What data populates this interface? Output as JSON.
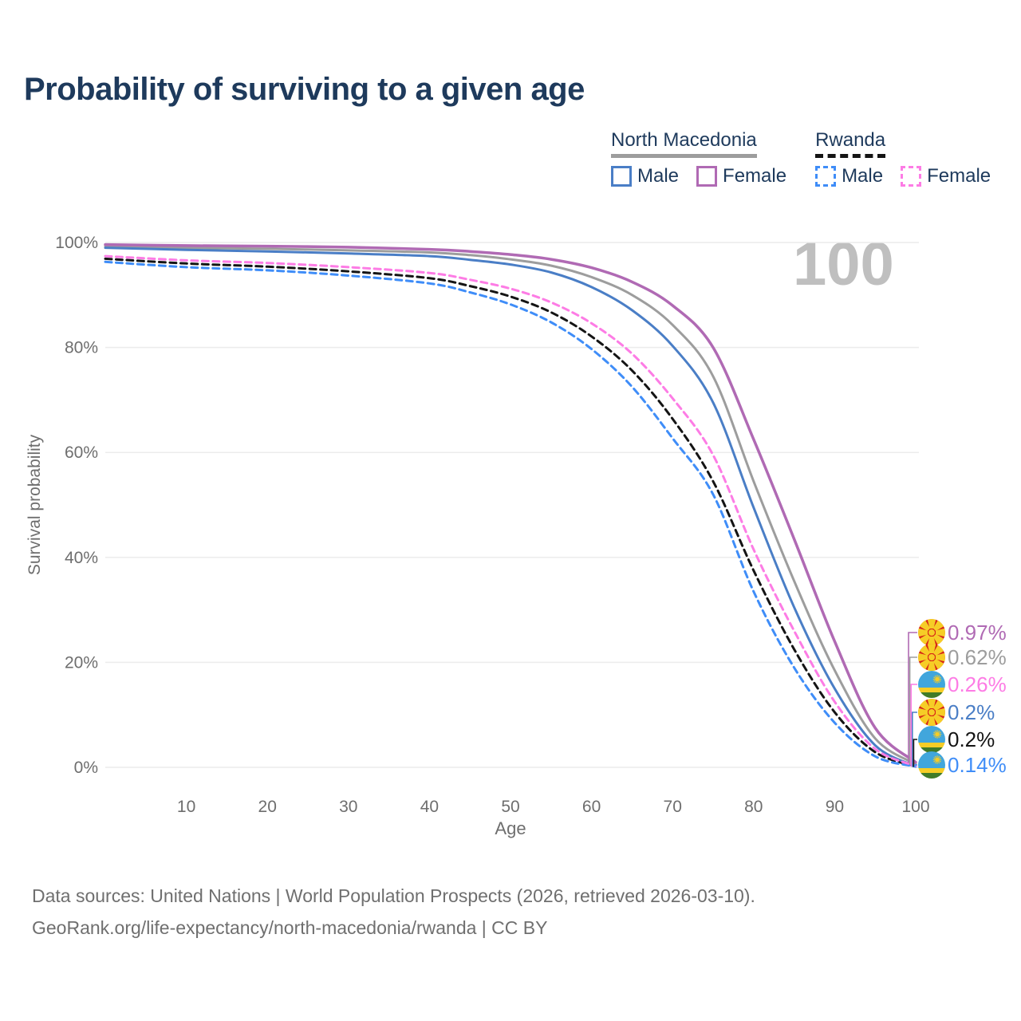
{
  "title": "Probability of surviving to a given age",
  "watermark": "100",
  "legend": {
    "groups": [
      {
        "country": "North Macedonia",
        "line_style": "solid",
        "underline_color": "#9d9d9d",
        "items": [
          {
            "label": "Male",
            "color": "#4a7ec6",
            "dashed": false
          },
          {
            "label": "Female",
            "color": "#b06ab4",
            "dashed": false
          }
        ]
      },
      {
        "country": "Rwanda",
        "line_style": "dashed",
        "underline_color": "#141414",
        "items": [
          {
            "label": "Male",
            "color": "#3f8df8",
            "dashed": true
          },
          {
            "label": "Female",
            "color": "#fd7ce5",
            "dashed": true
          }
        ]
      }
    ]
  },
  "chart_data": {
    "type": "line",
    "title": "Probability of surviving to a given age",
    "xlabel": "Age",
    "ylabel": "Survival probability",
    "xlim": [
      0,
      100
    ],
    "ylim": [
      0,
      100
    ],
    "grid": "horizontal",
    "legend_position": "top-right",
    "x_ticks": [
      10,
      20,
      30,
      40,
      50,
      60,
      70,
      80,
      90,
      100
    ],
    "y_ticks": [
      "0%",
      "20%",
      "40%",
      "60%",
      "80%",
      "100%"
    ],
    "x": [
      0,
      10,
      20,
      30,
      40,
      45,
      50,
      55,
      60,
      65,
      70,
      75,
      80,
      85,
      90,
      95,
      100
    ],
    "series": [
      {
        "name": "North Macedonia Female",
        "flag": "north-macedonia",
        "color": "#b06ab4",
        "dashed": false,
        "end_label": "0.97%",
        "values": [
          99.6,
          99.4,
          99.3,
          99.1,
          98.7,
          98.3,
          97.7,
          96.8,
          95.2,
          92.5,
          88.0,
          80.0,
          62.5,
          43.5,
          24.0,
          7.5,
          0.97
        ]
      },
      {
        "name": "North Macedonia",
        "flag": "north-macedonia",
        "color": "#9d9d9d",
        "dashed": false,
        "end_label": "0.62%",
        "values": [
          99.3,
          99.0,
          98.8,
          98.5,
          98.1,
          97.6,
          96.8,
          95.6,
          93.4,
          90.0,
          84.3,
          74.5,
          54.5,
          35.5,
          18.5,
          5.5,
          0.62
        ]
      },
      {
        "name": "Rwanda Female",
        "flag": "rwanda",
        "color": "#fd7ce5",
        "dashed": true,
        "end_label": "0.26%",
        "values": [
          97.4,
          96.6,
          96.1,
          95.3,
          94.2,
          92.9,
          91.2,
          88.6,
          84.6,
          78.8,
          70.3,
          59.5,
          41.5,
          26.0,
          12.5,
          3.5,
          0.26
        ]
      },
      {
        "name": "North Macedonia Male",
        "flag": "north-macedonia",
        "color": "#4a7ec6",
        "dashed": false,
        "end_label": "0.2%",
        "values": [
          99.0,
          98.6,
          98.3,
          97.9,
          97.4,
          96.7,
          95.8,
          94.3,
          91.5,
          87.1,
          80.3,
          69.5,
          49.5,
          30.5,
          15.0,
          4.2,
          0.2
        ]
      },
      {
        "name": "Rwanda",
        "flag": "rwanda",
        "color": "#141414",
        "dashed": true,
        "end_label": "0.2%",
        "values": [
          96.9,
          96.0,
          95.4,
          94.5,
          93.2,
          91.7,
          89.7,
          86.7,
          82.1,
          75.6,
          66.4,
          54.5,
          37.5,
          22.5,
          10.5,
          2.9,
          0.2
        ]
      },
      {
        "name": "Rwanda Male",
        "flag": "rwanda",
        "color": "#3f8df8",
        "dashed": true,
        "end_label": "0.14%",
        "values": [
          96.3,
          95.3,
          94.7,
          93.7,
          92.2,
          90.5,
          88.2,
          84.8,
          79.7,
          72.5,
          62.7,
          52.0,
          33.5,
          19.0,
          8.5,
          2.1,
          0.14
        ]
      }
    ]
  },
  "footer": {
    "line1": "Data sources: United Nations | World Population Prospects (2026, retrieved 2026-03-10).",
    "line2": "GeoRank.org/life-expectancy/north-macedonia/rwanda | CC BY"
  }
}
